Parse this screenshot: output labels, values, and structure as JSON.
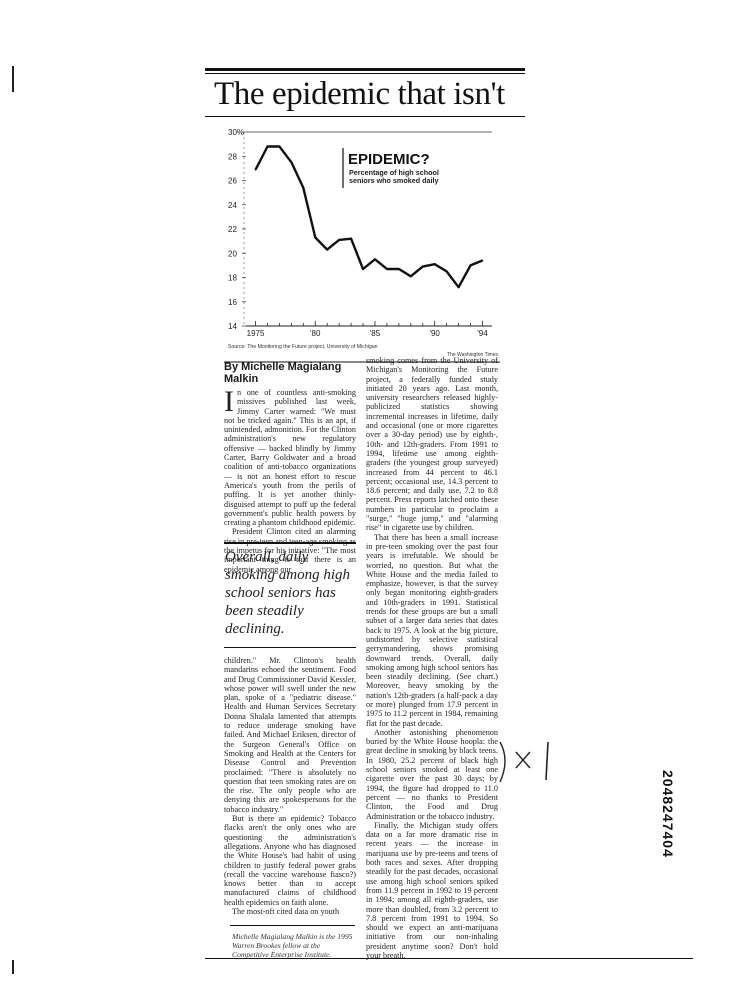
{
  "article": {
    "headline": "The epidemic that isn't",
    "byline": "By Michelle Magialang Malkin",
    "drop_cap": "I",
    "col1_p1": "n one of countless anti-smoking missives published last week, Jimmy Carter warned: \"We must not be tricked again.\" This is an apt, if unintended, admonition. For the Clinton administration's new regulatory offensive — backed blindly by Jimmy Carter, Barry Goldwater and a broad coalition of anti-tobacco organizations — is not an honest effort to rescue America's youth from the perils of puffing. It is yet another thinly-disguised attempt to puff up the federal government's public health powers by creating a phantom childhood epidemic.",
    "col1_p2": "President Clinton cited an alarming rise in pre-teen and teen-age smoking as the impetus for his initiative: \"The most important thing is that there is an epidemic among our",
    "pull_quote": "Overall, daily smoking among high school seniors has been steadily declining.",
    "col1_p3": "children.\" Mr. Clinton's health mandarins echoed the sentiment. Food and Drug Commissioner David Kessler, whose power will swell under the new plan, spoke of a \"pediatric disease.\" Health and Human Services Secretary Donna Shalala lamented that attempts to reduce underage smoking have failed. And Michael Eriksen, director of the Surgeon General's Office on Smoking and Health at the Centers for Disease Control and Prevention proclaimed: \"There is absolutely no question that teen smoking rates are on the rise. The only people who are denying this are spokespersons for the tobacco industry.\"",
    "col1_p4": "But is there an epidemic? Tobacco flacks aren't the only ones who are questioning the administration's allegations. Anyone who has diagnosed the White House's bad habit of using children to justify federal power grabs (recall the vaccine warehouse fiasco?) knows better than to accept manufactured claims of childhood health epidemics on faith alone.",
    "col1_p5": "The most-oft cited data on youth",
    "author_note": "Michelle Magialang Malkin is the 1995 Warren Brookes fellow at the Competitive Enterprise Institute.",
    "col2_p1": "smoking comes from the University of Michigan's Monitoring the Future project, a federally funded study initiated 20 years ago. Last month, university researchers released highly-publicized statistics showing incremental increases in lifetime, daily and occasional (one or more cigarettes over a 30-day period) use by eighth-, 10th- and 12th-graders. From 1991 to 1994, lifetime use among eighth-graders (the youngest group surveyed) increased from 44 percent to 46.1 percent; occasional use, 14.3 percent to 18.6 percent; and daily use, 7.2 to 8.8 percent. Press reports latched onto these numbers in particular to proclaim a \"surge,\" \"huge jump,\" and \"alarming rise\" in cigarette use by children.",
    "col2_p2": "That there has been a small increase in pre-teen smoking over the past four years is irrefutable. We should be worried, no question. But what the White House and the media failed to emphasize, however, is that the survey only began monitoring eighth-graders and 10th-graders in 1991. Statistical trends for these groups are but a small subset of a larger data series that dates back to 1975. A look at the big picture, undistorted by selective statistical gerrymandering, shows promising downward trends. Overall, daily smoking among high school seniors has been steadily declining. (See chart.) Moreover, heavy smoking by the nation's 12th-graders (a half-pack a day or more) plunged from 17.9 percent in 1975 to 11.2 percent in 1984, remaining flat for the past decade.",
    "col2_p3": "Another astonishing phenomenon buried by the White House hoopla: the great decline in smoking by black teens. In 1980, 25.2 percent of black high school seniors smoked at least one cigarette over the past 30 days; by 1994, the figure had dropped to 11.0 percent — no thanks to President Clinton, the Food and Drug Administration or the tobacco industry.",
    "col2_p4": "Finally, the Michigan study offers data on a far more dramatic rise in recent years — the increase in marijuana use by pre-teens and teens of both races and sexes. After dropping steadily for the past decades, occasional use among high school seniors spiked from 11.9 percent in 1992 to 19 percent in 1994; among all eighth-graders, use more than doubled, from 3.2 percent to 7.8 percent from 1991 to 1994. So should we expect an anti-marijuana initiative from our non-inhaling president anytime soon? Don't hold your breath."
  },
  "margin_code": "2048247404",
  "chart_data": {
    "type": "line",
    "title": "EPIDEMIC?",
    "subtitle": "Percentage of high school seniors who smoked daily",
    "source": "Source: The Monitoring the Future project, University of Michigan",
    "credit": "The Washington Times",
    "ylim": [
      14,
      30
    ],
    "y_ticks": [
      "30%",
      "28",
      "26",
      "24",
      "22",
      "20",
      "18",
      "16",
      "14"
    ],
    "x_ticks": [
      {
        "year": 1975,
        "label": "1975"
      },
      {
        "year": 1980,
        "label": "'80"
      },
      {
        "year": 1985,
        "label": "'85"
      },
      {
        "year": 1990,
        "label": "'90"
      },
      {
        "year": 1994,
        "label": "'94"
      }
    ],
    "x": [
      1975,
      1976,
      1977,
      1978,
      1979,
      1980,
      1981,
      1982,
      1983,
      1984,
      1985,
      1986,
      1987,
      1988,
      1989,
      1990,
      1991,
      1992,
      1993,
      1994
    ],
    "values": [
      26.9,
      28.8,
      28.8,
      27.5,
      25.4,
      21.3,
      20.3,
      21.1,
      21.2,
      18.7,
      19.5,
      18.7,
      18.7,
      18.1,
      18.9,
      19.1,
      18.5,
      17.2,
      19.0,
      19.4
    ],
    "color": "#111111"
  }
}
